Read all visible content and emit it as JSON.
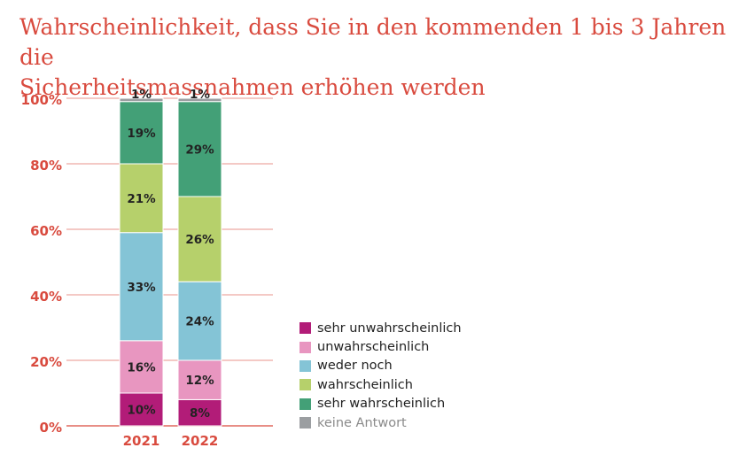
{
  "title_lines": [
    "Wahrscheinlichkeit, dass Sie in den kommenden 1 bis 3 Jahren die",
    "Sicherheitsmassnahmen erhöhen werden"
  ],
  "colors": {
    "accent_red": "#d94b3f",
    "grid_red": "#e8938b",
    "sehr_unwahrscheinlich": "#b21c78",
    "unwahrscheinlich": "#e896c0",
    "weder_noch": "#84c4d6",
    "wahrscheinlich": "#b6d06b",
    "sehr_wahrscheinlich": "#43a077",
    "keine_antwort": "#9b9ea1"
  },
  "chart_data": {
    "type": "bar",
    "stacked": true,
    "categories": [
      "2021",
      "2022"
    ],
    "ylim": [
      0,
      100
    ],
    "yticks": [
      "0%",
      "20%",
      "40%",
      "60%",
      "80%",
      "100%"
    ],
    "ytick_values": [
      0,
      20,
      40,
      60,
      80,
      100
    ],
    "grid": true,
    "legend_position": "right",
    "series": [
      {
        "name": "sehr unwahrscheinlich",
        "values": [
          10,
          8
        ],
        "labels": [
          "10%",
          "8%"
        ],
        "color_key": "sehr_unwahrscheinlich",
        "label_color": "#222222"
      },
      {
        "name": "unwahrscheinlich",
        "values": [
          16,
          12
        ],
        "labels": [
          "16%",
          "12%"
        ],
        "color_key": "unwahrscheinlich",
        "label_color": "#222222"
      },
      {
        "name": "weder noch",
        "values": [
          33,
          24
        ],
        "labels": [
          "33%",
          "24%"
        ],
        "color_key": "weder_noch",
        "label_color": "#222222"
      },
      {
        "name": "wahrscheinlich",
        "values": [
          21,
          26
        ],
        "labels": [
          "21%",
          "26%"
        ],
        "color_key": "wahrscheinlich",
        "label_color": "#222222"
      },
      {
        "name": "sehr wahrscheinlich",
        "values": [
          19,
          29
        ],
        "labels": [
          "19%",
          "29%"
        ],
        "color_key": "sehr_wahrscheinlich",
        "label_color": "#222222"
      },
      {
        "name": "keine Antwort",
        "values": [
          1,
          1
        ],
        "labels": [
          "1%",
          "1%"
        ],
        "color_key": "keine_antwort",
        "label_color": "#222222"
      }
    ]
  }
}
